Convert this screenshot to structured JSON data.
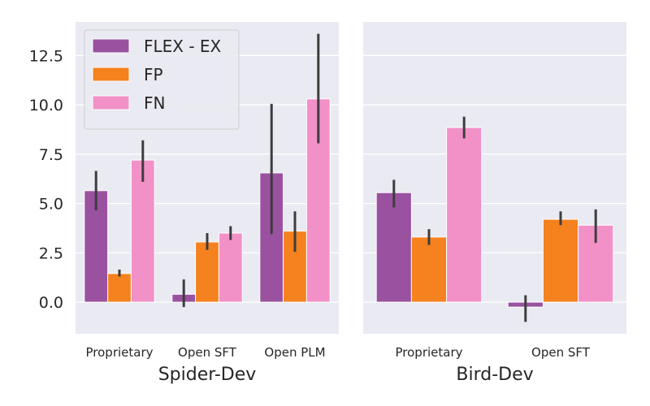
{
  "chart_data": [
    {
      "type": "bar",
      "xlabel": "Spider-Dev",
      "ylabel": "",
      "ylim": [
        -1.6,
        14.2
      ],
      "yticks": [
        "0.0",
        "2.5",
        "5.0",
        "7.5",
        "10.0",
        "12.5"
      ],
      "ytick_values": [
        0,
        2.5,
        5,
        7.5,
        10,
        12.5
      ],
      "categories": [
        "Proprietary",
        "Open SFT",
        "Open PLM"
      ],
      "series": [
        {
          "name": "FLEX - EX",
          "color": "#9a52a0",
          "values": [
            5.65,
            0.4,
            6.55
          ],
          "err_low": [
            4.65,
            -0.25,
            3.45
          ],
          "err_high": [
            6.65,
            1.15,
            10.05
          ]
        },
        {
          "name": "FP",
          "color": "#f5811f",
          "values": [
            1.45,
            3.05,
            3.6
          ],
          "err_low": [
            1.3,
            2.65,
            2.55
          ],
          "err_high": [
            1.65,
            3.5,
            4.6
          ]
        },
        {
          "name": "FN",
          "color": "#f291c7",
          "values": [
            7.2,
            3.5,
            10.3
          ],
          "err_low": [
            6.1,
            3.15,
            8.05
          ],
          "err_high": [
            8.2,
            3.85,
            13.6
          ]
        }
      ],
      "legend": [
        "FLEX - EX",
        "FP",
        "FN"
      ],
      "legend_position": "upper-left",
      "grid": true
    },
    {
      "type": "bar",
      "xlabel": "Bird-Dev",
      "ylabel": "",
      "ylim": [
        -1.6,
        14.2
      ],
      "categories": [
        "Proprietary",
        "Open SFT"
      ],
      "series": [
        {
          "name": "FLEX - EX",
          "color": "#9a52a0",
          "values": [
            5.55,
            -0.25
          ],
          "err_low": [
            4.8,
            -1.0
          ],
          "err_high": [
            6.2,
            0.35
          ]
        },
        {
          "name": "FP",
          "color": "#f5811f",
          "values": [
            3.3,
            4.2
          ],
          "err_low": [
            2.9,
            3.9
          ],
          "err_high": [
            3.7,
            4.6
          ]
        },
        {
          "name": "FN",
          "color": "#f291c7",
          "values": [
            8.85,
            3.9
          ],
          "err_low": [
            8.3,
            3.0
          ],
          "err_high": [
            9.4,
            4.7
          ]
        }
      ],
      "grid": true
    }
  ]
}
